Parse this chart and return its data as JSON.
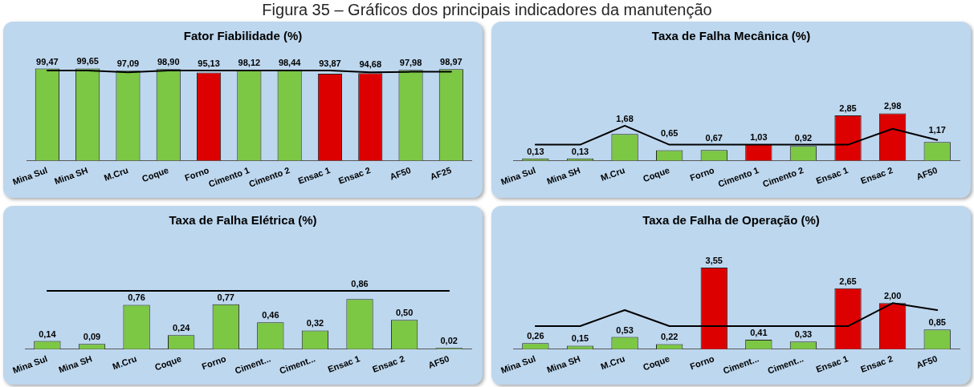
{
  "chart_data": [
    {
      "type": "bar",
      "title": "Fator Fiabilidade (%)",
      "annotations": [
        "Figura 35 – Gráficos dos principais indicadores da manutenção"
      ],
      "categories": [
        "Mina Sul",
        "Mina SH",
        "M.Cru",
        "Coque",
        "Forno",
        "Cimento 1",
        "Cimento 2",
        "Ensac 1",
        "Ensac 2",
        "AF50",
        "AF25"
      ],
      "series": [
        {
          "values": [
            99.47,
            99.65,
            97.09,
            98.9,
            95.13,
            98.12,
            98.44,
            93.87,
            94.68,
            97.98,
            98.97
          ],
          "colors": [
            "#7cc744",
            "#7cc744",
            "#7cc744",
            "#7cc744",
            "#dd0000",
            "#7cc744",
            "#7cc744",
            "#dd0000",
            "#dd0000",
            "#7cc744",
            "#7cc744"
          ],
          "value_labels": [
            "99,47",
            "99,65",
            "97,09",
            "98,90",
            "95,13",
            "98,12",
            "98,44",
            "93,87",
            "94,68",
            "97,98",
            "98,97"
          ]
        },
        {
          "type": "line",
          "color": "#000000",
          "values": [
            97.5,
            97.5,
            95.5,
            97.5,
            97.5,
            97.5,
            97.5,
            97.5,
            95.5,
            96,
            96
          ]
        }
      ],
      "tick_labels": "x"
    },
    {
      "type": "bar",
      "title": "Taxa de Falha Mecânica (%)",
      "categories": [
        "Mina Sul",
        "Mina SH",
        "M.Cru",
        "Coque",
        "Forno",
        "Cimento 1",
        "Cimento 2",
        "Ensac 1",
        "Ensac 2",
        "AF50"
      ],
      "series": [
        {
          "values": [
            0.13,
            0.13,
            1.68,
            0.65,
            0.67,
            1.03,
            0.92,
            2.85,
            2.98,
            1.17
          ],
          "colors": [
            "#7cc744",
            "#7cc744",
            "#7cc744",
            "#7cc744",
            "#7cc744",
            "#dd0000",
            "#7cc744",
            "#dd0000",
            "#dd0000",
            "#7cc744"
          ],
          "value_labels": [
            "0,13",
            "0,13",
            "1,68",
            "0,65",
            "0,67",
            "1,03",
            "0,92",
            "2,85",
            "2,98",
            "1,17"
          ]
        },
        {
          "type": "line",
          "color": "#000000",
          "values": [
            1.0,
            1.0,
            2.2,
            1.0,
            1.0,
            1.0,
            1.0,
            1.0,
            2.0,
            1.3
          ]
        }
      ],
      "tick_labels": "x"
    },
    {
      "type": "bar",
      "title": "Taxa de Falha Elétrica (%)",
      "categories": [
        "Mina Sul",
        "Mina SH",
        "M.Cru",
        "Coque",
        "Forno",
        "Ciment...",
        "Ciment...",
        "Ensac 1",
        "Ensac 2",
        "AF50"
      ],
      "series": [
        {
          "values": [
            0.14,
            0.09,
            0.76,
            0.24,
            0.77,
            0.46,
            0.32,
            0.86,
            0.5,
            0.02
          ],
          "colors": [
            "#7cc744",
            "#7cc744",
            "#7cc744",
            "#7cc744",
            "#7cc744",
            "#7cc744",
            "#7cc744",
            "#7cc744",
            "#7cc744",
            "#7cc744"
          ],
          "value_labels": [
            "0,14",
            "0,09",
            "0,76",
            "0,24",
            "0,77",
            "0,46",
            "0,32",
            "0,86",
            "0,50",
            "0,02"
          ]
        },
        {
          "type": "line",
          "color": "#000000",
          "values": [
            1.0,
            1.0,
            1.0,
            1.0,
            1.0,
            1.0,
            1.0,
            1.0,
            1.0,
            1.0
          ]
        }
      ],
      "tick_labels": "x"
    },
    {
      "type": "bar",
      "title": "Taxa de Falha de Operação (%)",
      "categories": [
        "Mina Sul",
        "Mina SH",
        "M.Cru",
        "Coque",
        "Forno",
        "Ciment...",
        "Ciment...",
        "Ensac 1",
        "Ensac 2",
        "AF50"
      ],
      "series": [
        {
          "values": [
            0.26,
            0.15,
            0.53,
            0.22,
            3.55,
            0.41,
            0.33,
            2.65,
            2.0,
            0.85
          ],
          "colors": [
            "#7cc744",
            "#7cc744",
            "#7cc744",
            "#7cc744",
            "#dd0000",
            "#7cc744",
            "#7cc744",
            "#dd0000",
            "#dd0000",
            "#7cc744"
          ],
          "value_labels": [
            "0,26",
            "0,15",
            "0,53",
            "0,22",
            "3,55",
            "0,41",
            "0,33",
            "2,65",
            "2,00",
            "0,85"
          ]
        },
        {
          "type": "line",
          "color": "#000000",
          "values": [
            1.0,
            1.0,
            1.7,
            1.0,
            1.0,
            1.0,
            1.0,
            1.0,
            2.0,
            1.7
          ]
        }
      ],
      "tick_labels": "x"
    }
  ]
}
